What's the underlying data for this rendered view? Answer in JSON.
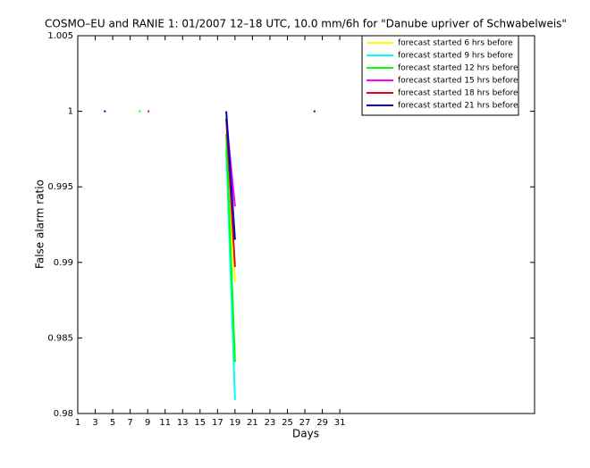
{
  "chart_data": {
    "type": "line",
    "title": "COSMO–EU and RANIE 1: 01/2007 12–18 UTC, 10.0 mm/6h for \"Danube upriver of Schwabelweis\"",
    "x_label": "Days",
    "y_label": "False alarm ratio",
    "x": [
      1,
      2,
      3,
      4,
      5,
      6,
      7,
      8,
      9,
      10,
      11,
      12,
      13,
      14,
      15,
      16,
      17,
      18,
      19,
      20,
      21,
      22,
      23,
      24,
      25,
      26,
      27,
      28,
      29,
      30,
      31
    ],
    "series": [
      {
        "name": "forecast started 6 hrs before",
        "color": "#ffff00",
        "values": [
          null,
          null,
          null,
          null,
          null,
          null,
          null,
          null,
          null,
          null,
          null,
          null,
          null,
          null,
          null,
          null,
          null,
          0.997,
          0.9887,
          null,
          null,
          null,
          null,
          null,
          null,
          null,
          null,
          null,
          null,
          null,
          null
        ]
      },
      {
        "name": "forecast started 9 hrs before",
        "color": "#00ffff",
        "values": [
          null,
          null,
          null,
          null,
          null,
          null,
          null,
          null,
          null,
          null,
          null,
          null,
          null,
          null,
          null,
          null,
          null,
          0.9975,
          0.9809,
          null,
          null,
          null,
          null,
          null,
          null,
          null,
          null,
          null,
          null,
          null,
          null
        ]
      },
      {
        "name": "forecast started 12 hrs before",
        "color": "#00ff00",
        "values": [
          null,
          null,
          null,
          null,
          null,
          null,
          null,
          1,
          null,
          null,
          null,
          null,
          null,
          null,
          null,
          null,
          null,
          0.9985,
          0.9834,
          null,
          null,
          null,
          null,
          null,
          null,
          null,
          null,
          null,
          null,
          null,
          null
        ]
      },
      {
        "name": "forecast started 15 hrs before",
        "color": "#ff00ff",
        "values": [
          null,
          null,
          null,
          null,
          null,
          null,
          null,
          null,
          null,
          null,
          null,
          null,
          null,
          null,
          null,
          null,
          null,
          0.9995,
          0.9937,
          null,
          null,
          null,
          null,
          null,
          null,
          null,
          null,
          null,
          null,
          null,
          null
        ]
      },
      {
        "name": "forecast started 18 hrs before",
        "color": "#e8001c",
        "values": [
          null,
          null,
          null,
          null,
          null,
          null,
          null,
          null,
          1,
          null,
          null,
          null,
          null,
          null,
          null,
          null,
          null,
          0.9995,
          0.9897,
          null,
          null,
          null,
          null,
          null,
          null,
          null,
          null,
          null,
          null,
          null,
          null
        ]
      },
      {
        "name": "forecast started 21 hrs before",
        "color": "#0000c0",
        "values": [
          null,
          null,
          null,
          1,
          null,
          null,
          null,
          null,
          null,
          null,
          null,
          null,
          null,
          null,
          null,
          null,
          null,
          1,
          0.9915,
          null,
          null,
          null,
          null,
          null,
          null,
          null,
          null,
          1,
          null,
          null,
          null
        ]
      }
    ],
    "xlim": [
      1,
      53.3
    ],
    "xticks": [
      1,
      3,
      5,
      7,
      9,
      11,
      13,
      15,
      17,
      19,
      21,
      23,
      25,
      27,
      29,
      31
    ],
    "ylim": [
      0.98,
      1.005
    ],
    "yticks": [
      0.98,
      0.985,
      0.99,
      0.995,
      1,
      1.005
    ],
    "legend": "upper right"
  }
}
